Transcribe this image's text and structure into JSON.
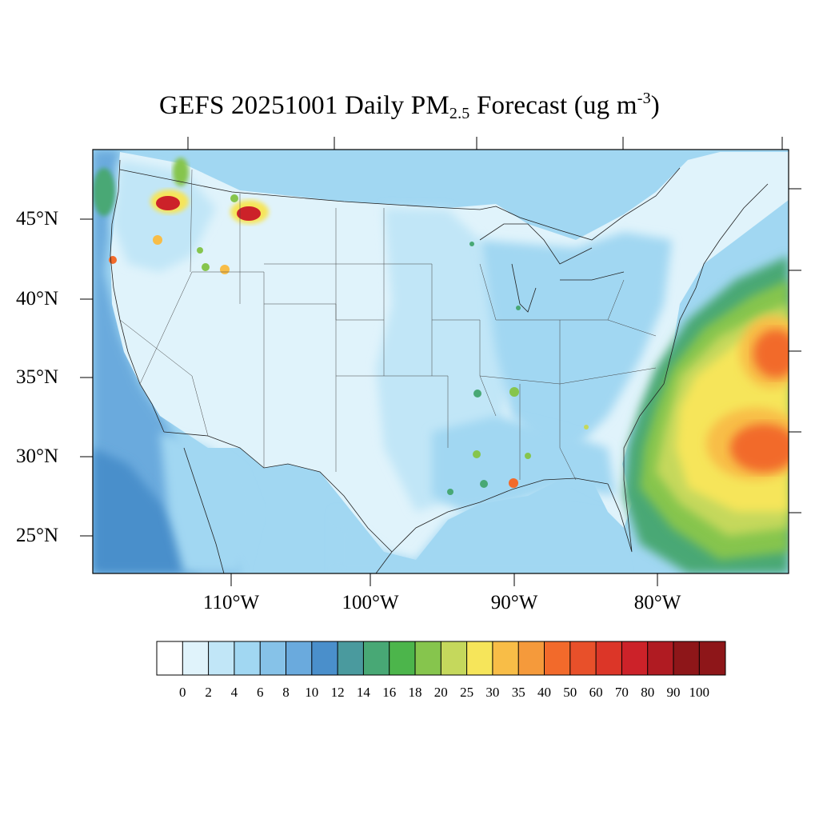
{
  "title": {
    "prefix": "GEFS 20251001 Daily PM",
    "subscript": "2.5",
    "middle": " Forecast (ug m",
    "superscript": "-3",
    "suffix": ")"
  },
  "lat_labels": [
    "45°N",
    "40°N",
    "35°N",
    "30°N",
    "25°N"
  ],
  "lon_labels": [
    "110°W",
    "100°W",
    "90°W",
    "80°W"
  ],
  "legend": {
    "labels": [
      "0",
      "2",
      "4",
      "6",
      "8",
      "10",
      "12",
      "14",
      "16",
      "18",
      "20",
      "25",
      "30",
      "35",
      "40",
      "50",
      "60",
      "70",
      "80",
      "90",
      "100"
    ],
    "colors": [
      "#ffffff",
      "#e0f3fb",
      "#c1e6f7",
      "#a1d7f2",
      "#86c2e8",
      "#6aaadd",
      "#4a8fcb",
      "#4a9a9e",
      "#48a875",
      "#4cb54b",
      "#86c54d",
      "#c5d85c",
      "#f6e55a",
      "#f8bd47",
      "#f59a3b",
      "#f26a2b",
      "#e8502a",
      "#dc3628",
      "#cc2229",
      "#b01b22",
      "#8e1619"
    ]
  },
  "colors": {
    "ocean": "#86c2e8",
    "land_low": "#e0f3fb",
    "land_mid": "#c1e6f7",
    "plume_green": "#48a875",
    "plume_yellow": "#f6e55a",
    "plume_orange": "#f59a3b",
    "plume_red": "#dc3628",
    "fire_dark": "#b01b22"
  }
}
